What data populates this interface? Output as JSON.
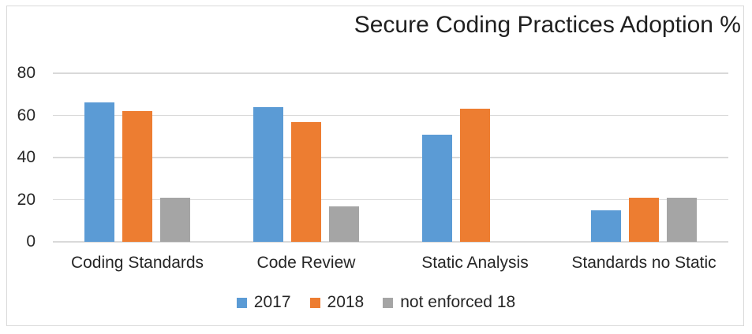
{
  "chart_data": {
    "type": "bar",
    "title": "Secure Coding Practices Adoption %",
    "categories": [
      "Coding Standards",
      "Code Review",
      "Static Analysis",
      "Standards no Static"
    ],
    "series": [
      {
        "name": "2017",
        "color": "#5B9BD5",
        "values": [
          66,
          64,
          51,
          15
        ]
      },
      {
        "name": "2018",
        "color": "#ED7D31",
        "values": [
          62,
          57,
          63,
          21
        ]
      },
      {
        "name": "not enforced 18",
        "color": "#A5A5A5",
        "values": [
          21,
          17,
          0,
          21
        ]
      }
    ],
    "xlabel": "",
    "ylabel": "",
    "y_ticks": [
      0,
      20,
      40,
      60,
      80
    ],
    "ylim": [
      0,
      80
    ],
    "grid": true,
    "legend_position": "bottom",
    "colors": {
      "gridline": "#D9D9D9",
      "frame_border": "#D9D9D9",
      "text": "#262626",
      "title_text": "#1f1f1f",
      "background": "#FFFFFF"
    }
  }
}
